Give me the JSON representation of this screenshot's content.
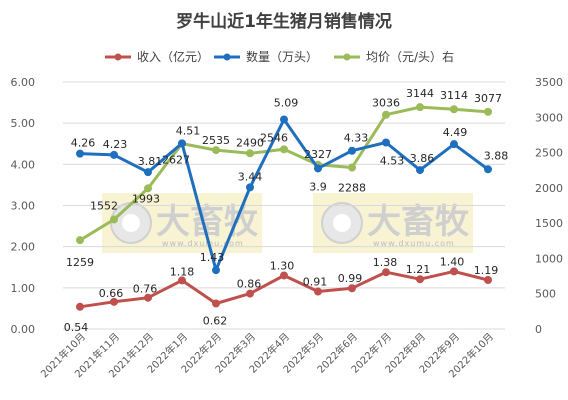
{
  "chart_data": {
    "type": "line",
    "title": "罗牛山近1年生猪月销售情况",
    "categories": [
      "2021年10月",
      "2021年11月",
      "2021年12月",
      "2022年1月",
      "2022年2月",
      "2022年3月",
      "2022年4月",
      "2022年5月",
      "2022年6月",
      "2022年7月",
      "2022年8月",
      "2022年9月",
      "2022年10月"
    ],
    "series": [
      {
        "name": "收入（亿元）",
        "axis": "left",
        "color": "#c0504d",
        "values": [
          0.54,
          0.66,
          0.76,
          1.18,
          0.62,
          0.86,
          1.3,
          0.91,
          0.99,
          1.38,
          1.21,
          1.4,
          1.19
        ],
        "labels": [
          "0.54",
          "0.66",
          "0.76",
          "1.18",
          "0.62",
          "0.86",
          "1.30",
          "0.91",
          "0.99",
          "1.38",
          "1.21",
          "1.40",
          "1.19"
        ]
      },
      {
        "name": "数量（万头）",
        "axis": "left",
        "color": "#1f6fbf",
        "values": [
          4.26,
          4.23,
          3.81,
          4.51,
          1.43,
          3.44,
          5.09,
          3.9,
          4.33,
          4.53,
          3.86,
          4.49,
          3.88
        ],
        "labels": [
          "4.26",
          "4.23",
          "3.81",
          "4.51",
          "1.43",
          "3.44",
          "5.09",
          "3.9",
          "4.33",
          "4.53",
          "3.86",
          "4.49",
          "3.88"
        ]
      },
      {
        "name": "均价（元/头）右",
        "axis": "right",
        "color": "#9bbb59",
        "values": [
          1259,
          1552,
          1993,
          2627,
          2535,
          2490,
          2546,
          2327,
          2288,
          3036,
          3144,
          3114,
          3077
        ],
        "labels": [
          "1259",
          "1552",
          "1993",
          "2627",
          "2535",
          "2490",
          "2546",
          "2327",
          "2288",
          "3036",
          "3144",
          "3114",
          "3077"
        ]
      }
    ],
    "y_left": {
      "min": 0,
      "max": 6,
      "ticks": [
        "0.00",
        "1.00",
        "2.00",
        "3.00",
        "4.00",
        "5.00",
        "6.00"
      ]
    },
    "y_right": {
      "min": 0,
      "max": 3500,
      "ticks": [
        "0",
        "500",
        "1000",
        "1500",
        "2000",
        "2500",
        "3000",
        "3500"
      ]
    },
    "legend": "top-center",
    "grid": true
  },
  "watermark": {
    "text": "大畜牧",
    "url": "www.dxumu.com"
  }
}
